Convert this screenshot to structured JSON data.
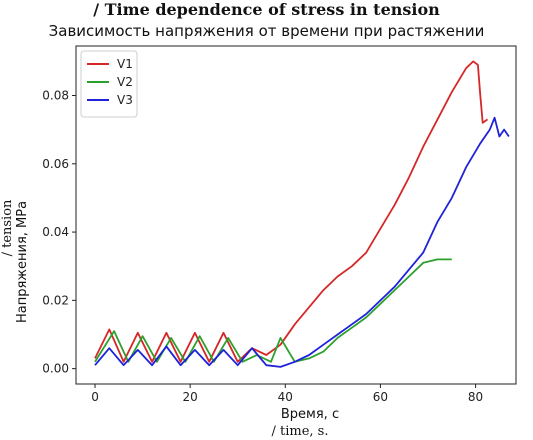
{
  "chart_data": {
    "type": "line",
    "title_en": "/ Time dependence of stress in tension",
    "title": "Зависимость напряжения от времени при растяжении",
    "xlabel": "Время, с",
    "xlabel_en": "/ time, s.",
    "ylabel": "Напряжения, МРа",
    "ylabel_en": "/ tension",
    "xlim": [
      -4,
      88.5
    ],
    "ylim": [
      -0.0045,
      0.0945
    ],
    "x_ticks": [
      0,
      20,
      40,
      60,
      80
    ],
    "y_ticks": [
      0.0,
      0.02,
      0.04,
      0.06,
      0.08
    ],
    "y_tick_labels": [
      "0.00",
      "0.02",
      "0.04",
      "0.06",
      "0.08"
    ],
    "legend_position": "top-left",
    "grid": false,
    "series": [
      {
        "name": "V1",
        "color": "#d62728",
        "x": [
          0,
          3,
          6,
          9,
          12,
          15,
          18,
          21,
          24,
          27,
          30,
          33,
          36,
          39,
          42,
          45,
          48,
          51,
          54,
          57,
          60,
          63,
          66,
          69,
          72,
          75,
          78,
          79.5,
          80.5,
          81,
          81.5,
          82.5
        ],
        "y": [
          0.003,
          0.0115,
          0.002,
          0.0105,
          0.002,
          0.0105,
          0.002,
          0.0105,
          0.002,
          0.0105,
          0.002,
          0.006,
          0.004,
          0.007,
          0.013,
          0.018,
          0.023,
          0.027,
          0.03,
          0.034,
          0.041,
          0.048,
          0.056,
          0.065,
          0.073,
          0.081,
          0.088,
          0.09,
          0.089,
          0.08,
          0.072,
          0.073
        ]
      },
      {
        "name": "V2",
        "color": "#2ca02c",
        "x": [
          0,
          4,
          7,
          10,
          13,
          16,
          19,
          22,
          25,
          28,
          31,
          34,
          37,
          39,
          42,
          45,
          48,
          51,
          54,
          57,
          60,
          63,
          66,
          69,
          72,
          75
        ],
        "y": [
          0.002,
          0.011,
          0.002,
          0.0095,
          0.002,
          0.009,
          0.002,
          0.0095,
          0.002,
          0.009,
          0.002,
          0.004,
          0.002,
          0.009,
          0.002,
          0.003,
          0.005,
          0.009,
          0.012,
          0.015,
          0.019,
          0.023,
          0.027,
          0.031,
          0.032,
          0.032
        ]
      },
      {
        "name": "V3",
        "color": "#1f22d8",
        "x": [
          0,
          3,
          6,
          9,
          12,
          15,
          18,
          21,
          24,
          27,
          30,
          33,
          36,
          39,
          42,
          45,
          48,
          51,
          54,
          57,
          60,
          63,
          66,
          69,
          72,
          75,
          78,
          81,
          83,
          84,
          85,
          86,
          87
        ],
        "y": [
          0.001,
          0.006,
          0.001,
          0.0055,
          0.001,
          0.0065,
          0.001,
          0.0055,
          0.001,
          0.0055,
          0.001,
          0.006,
          0.001,
          0.0005,
          0.002,
          0.004,
          0.007,
          0.01,
          0.013,
          0.016,
          0.02,
          0.024,
          0.029,
          0.034,
          0.043,
          0.05,
          0.059,
          0.066,
          0.07,
          0.0735,
          0.068,
          0.07,
          0.068
        ]
      }
    ]
  }
}
